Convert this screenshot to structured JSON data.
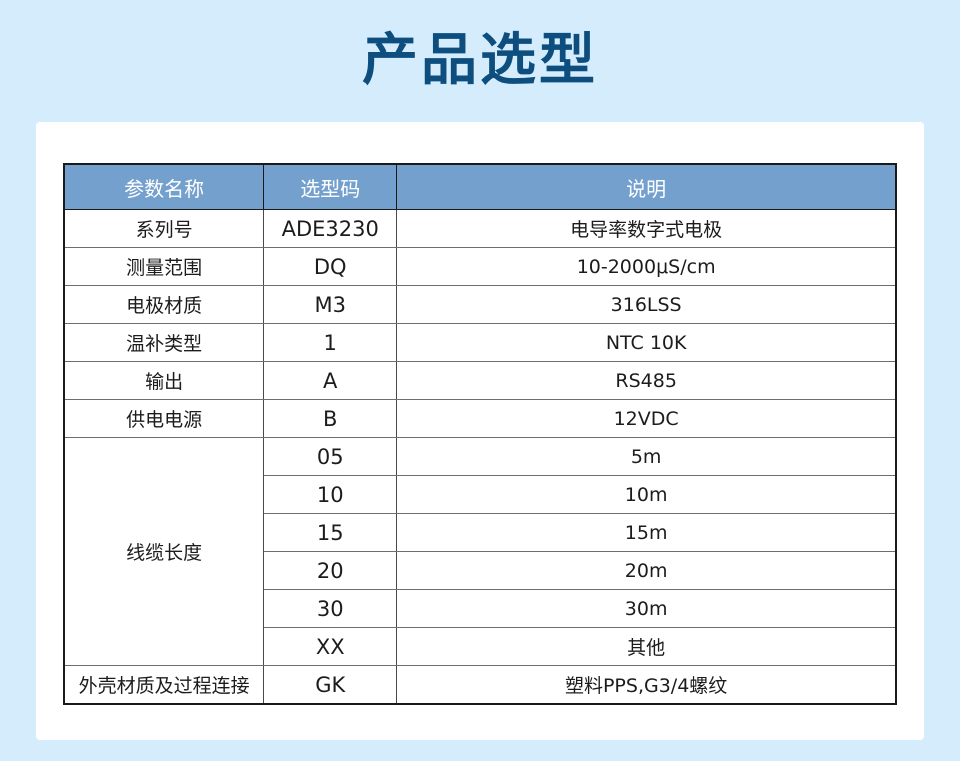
{
  "page": {
    "title": "产品选型"
  },
  "colors": {
    "page_background": "#d4ecfb",
    "card_background": "#ffffff",
    "table_header_background": "#74a0ce",
    "table_header_text": "#ffffff",
    "title_text": "#0d4e7e",
    "body_text": "#1c1c1c",
    "table_border": "#1a1a1a"
  },
  "table": {
    "headers": [
      "参数名称",
      "选型码",
      "说明"
    ],
    "rows": [
      {
        "param": "系列号",
        "code": "ADE3230",
        "desc": "电导率数字式电极"
      },
      {
        "param": "测量范围",
        "code": "DQ",
        "desc": "10-2000μS/cm"
      },
      {
        "param": "电极材质",
        "code": "M3",
        "desc": "316LSS"
      },
      {
        "param": "温补类型",
        "code": "1",
        "desc": "NTC 10K"
      },
      {
        "param": "输出",
        "code": "A",
        "desc": "RS485"
      },
      {
        "param": "供电电源",
        "code": "B",
        "desc": "12VDC"
      },
      {
        "param": "线缆长度",
        "options": [
          {
            "code": "05",
            "desc": "5m"
          },
          {
            "code": "10",
            "desc": "10m"
          },
          {
            "code": "15",
            "desc": "15m"
          },
          {
            "code": "20",
            "desc": "20m"
          },
          {
            "code": "30",
            "desc": "30m"
          },
          {
            "code": "XX",
            "desc": "其他"
          }
        ]
      },
      {
        "param": "外壳材质及过程连接",
        "code": "GK",
        "desc": "塑料PPS,G3/4螺纹"
      }
    ]
  }
}
